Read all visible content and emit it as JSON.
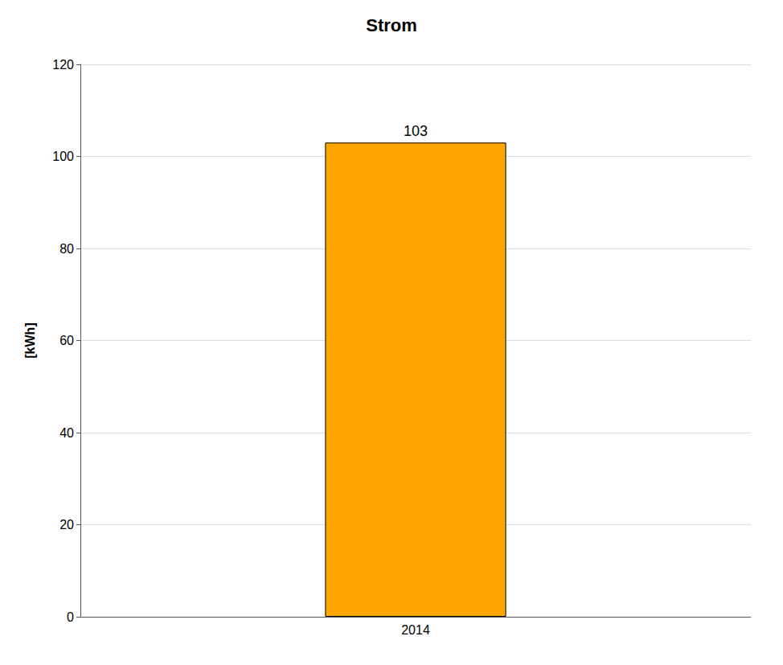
{
  "chart_data": {
    "type": "bar",
    "title": "Strom",
    "categories": [
      "2014"
    ],
    "values": [
      103
    ],
    "color": "#FFA500",
    "ylabel": "[kWh]",
    "ylim": [
      0,
      120
    ],
    "yticks": [
      0,
      20,
      40,
      60,
      80,
      100,
      120
    ],
    "grid": true,
    "data_labels": true
  }
}
